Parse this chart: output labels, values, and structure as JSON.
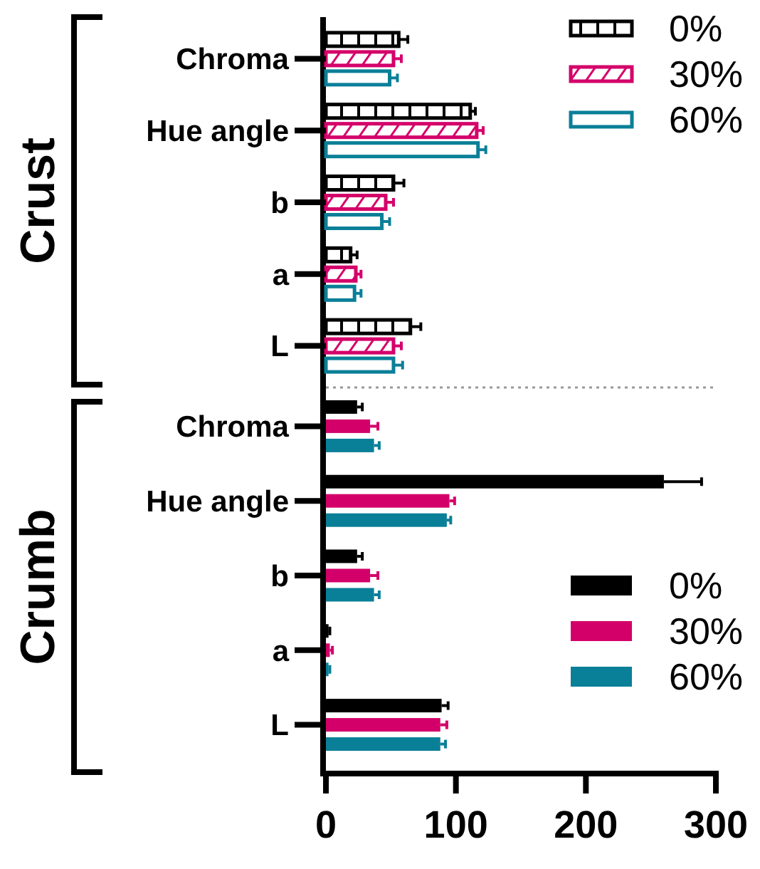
{
  "chart_data": [
    {
      "type": "bar",
      "orientation": "horizontal",
      "ylabel": "Crust",
      "categories": [
        "Chroma",
        "Hue angle",
        "b",
        "a",
        "L"
      ],
      "xlim": [
        0,
        300
      ],
      "tick_labels": "y",
      "legend": "top right",
      "series": [
        {
          "name": "0%",
          "color": "#000000",
          "values": [
            56,
            111,
            52,
            19,
            65
          ],
          "errors": [
            7,
            4,
            8,
            5,
            8
          ]
        },
        {
          "name": "30%",
          "color": "#d4006a",
          "values": [
            52,
            116,
            46,
            23,
            52
          ],
          "errors": [
            6,
            5,
            6,
            4,
            6
          ]
        },
        {
          "name": "60%",
          "color": "#0a7f98",
          "values": [
            49,
            117,
            43,
            22,
            52
          ],
          "errors": [
            6,
            6,
            6,
            5,
            7
          ]
        }
      ]
    },
    {
      "type": "bar",
      "orientation": "horizontal",
      "ylabel": "Crumb",
      "categories": [
        "Chroma",
        "Hue angle",
        "b",
        "a",
        "L"
      ],
      "xlim": [
        0,
        300
      ],
      "xticks": [
        0,
        100,
        200,
        300
      ],
      "legend": "bottom right",
      "series": [
        {
          "name": "0%",
          "color": "#000000",
          "values": [
            24,
            260,
            24,
            2,
            89
          ],
          "errors": [
            4,
            29,
            4,
            1,
            5
          ]
        },
        {
          "name": "30%",
          "color": "#d4006a",
          "values": [
            34,
            95,
            34,
            3,
            88
          ],
          "errors": [
            6,
            4,
            6,
            2,
            5
          ]
        },
        {
          "name": "60%",
          "color": "#0a7f98",
          "values": [
            37,
            93,
            37,
            2,
            88
          ],
          "errors": [
            4,
            3,
            4,
            1,
            4
          ]
        }
      ]
    }
  ]
}
